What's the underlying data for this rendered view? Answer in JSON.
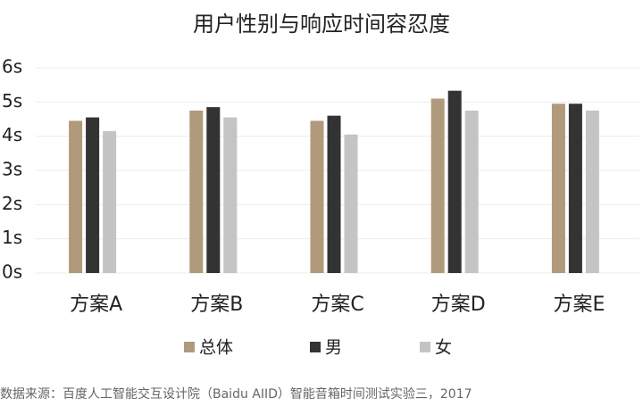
{
  "chart_data": {
    "type": "bar",
    "title": "用户性别与响应时间容忍度",
    "categories": [
      "方案A",
      "方案B",
      "方案C",
      "方案D",
      "方案E"
    ],
    "series": [
      {
        "name": "总体",
        "color": "#b09a7b",
        "values": [
          4.45,
          4.75,
          4.45,
          5.1,
          4.95
        ]
      },
      {
        "name": "男",
        "color": "#333333",
        "values": [
          4.55,
          4.85,
          4.6,
          5.33,
          4.95
        ]
      },
      {
        "name": "女",
        "color": "#c4c4c4",
        "values": [
          4.15,
          4.55,
          4.05,
          4.75,
          4.75
        ]
      }
    ],
    "ylim": [
      0,
      6
    ],
    "yticks": [
      {
        "value": 0,
        "label": "0s"
      },
      {
        "value": 1,
        "label": "1s"
      },
      {
        "value": 2,
        "label": "2s"
      },
      {
        "value": 3,
        "label": "3s"
      },
      {
        "value": 4,
        "label": "4s"
      },
      {
        "value": 5,
        "label": "5s"
      },
      {
        "value": 6,
        "label": "6s"
      }
    ],
    "grid": true,
    "source": "数据来源：百度人工智能交互设计院（Baidu AIID）智能音箱时间测试实验三，2017"
  }
}
